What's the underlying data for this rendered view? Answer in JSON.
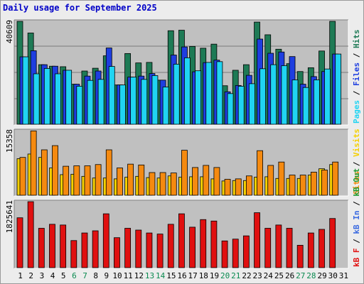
{
  "title": "Daily usage for September 2025",
  "colors": {
    "hits": "#1e7a55",
    "files": "#1e3ee0",
    "pages": "#20d4f2",
    "visits": "#f5d000",
    "sites": "#f58a10",
    "kbytes": "#e01010",
    "kb_in": "#3a6ae0",
    "kb_out": "#1e9a30",
    "weekend_day": "#0a8a50",
    "weekday_day": "#000000",
    "separator": "#000000",
    "panel_bg": "#c0c0c0"
  },
  "chart_data": [
    {
      "type": "bar",
      "name": "hits-files-pages",
      "axis_max_label": "40609",
      "ymax": 40609,
      "grid": true,
      "categories": [
        "1",
        "2",
        "3",
        "4",
        "5",
        "6",
        "7",
        "8",
        "9",
        "10",
        "11",
        "12",
        "13",
        "14",
        "15",
        "16",
        "17",
        "18",
        "19",
        "20",
        "21",
        "22",
        "23",
        "24",
        "25",
        "26",
        "27",
        "28",
        "29",
        "30",
        "31"
      ],
      "weekend_days": [
        "6",
        "7",
        "13",
        "14",
        "20",
        "21",
        "27",
        "28"
      ],
      "series": [
        {
          "name": "Hits",
          "values": [
            40600,
            36000,
            23500,
            22900,
            22700,
            15800,
            21000,
            22100,
            27000,
            15500,
            27900,
            24200,
            24400,
            17400,
            36900,
            37100,
            30700,
            30000,
            31600,
            15200,
            21300,
            23500,
            40300,
            35300,
            29600,
            23900,
            20800,
            22300,
            28900,
            40600,
            0
          ]
        },
        {
          "name": "Files",
          "values": [
            26600,
            29000,
            23500,
            22900,
            21300,
            15800,
            19000,
            21000,
            30100,
            15500,
            18600,
            19000,
            20000,
            17400,
            27300,
            30500,
            20700,
            24300,
            25300,
            12800,
            15300,
            19300,
            33600,
            28000,
            28500,
            26700,
            15800,
            18800,
            20800,
            27700,
            0
          ]
        },
        {
          "name": "Pages",
          "values": [
            26600,
            19900,
            22000,
            19900,
            21300,
            15000,
            17300,
            17700,
            22800,
            15500,
            18600,
            17700,
            19200,
            14700,
            23700,
            26200,
            21100,
            24400,
            24700,
            12100,
            15000,
            16000,
            21900,
            23500,
            23100,
            17500,
            14500,
            17500,
            21800,
            27700,
            0
          ]
        }
      ],
      "y_label_parts": [
        {
          "text": "Pages",
          "color": "#20d4f2"
        },
        {
          "text": " / ",
          "color": "#000000"
        },
        {
          "text": "Files",
          "color": "#1e3ee0"
        },
        {
          "text": " / ",
          "color": "#000000"
        },
        {
          "text": "Hits",
          "color": "#1e7a55"
        }
      ]
    },
    {
      "type": "bar",
      "name": "visits-sites",
      "axis_max_label": "15358",
      "ymax": 15358,
      "grid": false,
      "categories": [
        "1",
        "2",
        "3",
        "4",
        "5",
        "6",
        "7",
        "8",
        "9",
        "10",
        "11",
        "12",
        "13",
        "14",
        "15",
        "16",
        "17",
        "18",
        "19",
        "20",
        "21",
        "22",
        "23",
        "24",
        "25",
        "26",
        "27",
        "28",
        "29",
        "30",
        "31"
      ],
      "series": [
        {
          "name": "Visits",
          "values": [
            8700,
            9800,
            9000,
            6500,
            4900,
            5000,
            4500,
            4100,
            4100,
            3900,
            4300,
            4500,
            4200,
            4100,
            4600,
            4300,
            4400,
            4400,
            3900,
            3400,
            3500,
            3500,
            4300,
            4400,
            4000,
            4000,
            4000,
            4800,
            6300,
            7300,
            0
          ]
        },
        {
          "name": "Sites",
          "values": [
            9000,
            15300,
            10800,
            11800,
            6900,
            7000,
            7000,
            7300,
            10800,
            6500,
            7400,
            7200,
            5400,
            5400,
            5300,
            10700,
            6600,
            7100,
            6600,
            3800,
            3900,
            4600,
            10600,
            7100,
            7900,
            4800,
            4800,
            5500,
            6000,
            7900,
            0
          ]
        }
      ],
      "y_label_parts": [
        {
          "text": "Sites",
          "color": "#f58a10"
        },
        {
          "text": " / ",
          "color": "#000000"
        },
        {
          "text": "Visits",
          "color": "#f5d000"
        }
      ]
    },
    {
      "type": "bar",
      "name": "kbytes",
      "axis_max_label": "1825641",
      "ymax": 1825641,
      "grid": false,
      "categories": [
        "1",
        "2",
        "3",
        "4",
        "5",
        "6",
        "7",
        "8",
        "9",
        "10",
        "11",
        "12",
        "13",
        "14",
        "15",
        "16",
        "17",
        "18",
        "19",
        "20",
        "21",
        "22",
        "23",
        "24",
        "25",
        "26",
        "27",
        "28",
        "29",
        "30",
        "31"
      ],
      "series": [
        {
          "name": "kB F",
          "values": [
            1380000,
            1825000,
            1090000,
            1200000,
            1180000,
            750000,
            960000,
            1020000,
            1490000,
            830000,
            1090000,
            1040000,
            960000,
            930000,
            1200000,
            1490000,
            1120000,
            1330000,
            1290000,
            740000,
            790000,
            880000,
            1520000,
            1090000,
            1180000,
            1090000,
            620000,
            960000,
            1060000,
            1360000,
            0
          ]
        },
        {
          "name": "kB In",
          "values": [
            0,
            0,
            0,
            0,
            0,
            0,
            0,
            0,
            0,
            0,
            0,
            0,
            0,
            0,
            0,
            0,
            0,
            0,
            0,
            0,
            0,
            0,
            0,
            0,
            0,
            0,
            0,
            0,
            0,
            0,
            0
          ]
        },
        {
          "name": "kB Out",
          "values": [
            0,
            0,
            0,
            0,
            0,
            0,
            0,
            0,
            0,
            0,
            0,
            0,
            0,
            0,
            0,
            0,
            0,
            0,
            0,
            0,
            0,
            0,
            0,
            0,
            0,
            0,
            0,
            0,
            0,
            0,
            0
          ]
        }
      ],
      "y_label_parts": [
        {
          "text": "kB F",
          "color": "#e01010"
        },
        {
          "text": " / ",
          "color": "#000000"
        },
        {
          "text": "kB In",
          "color": "#3a6ae0"
        },
        {
          "text": " / ",
          "color": "#000000"
        },
        {
          "text": "kB Out",
          "color": "#1e9a30"
        }
      ]
    }
  ]
}
